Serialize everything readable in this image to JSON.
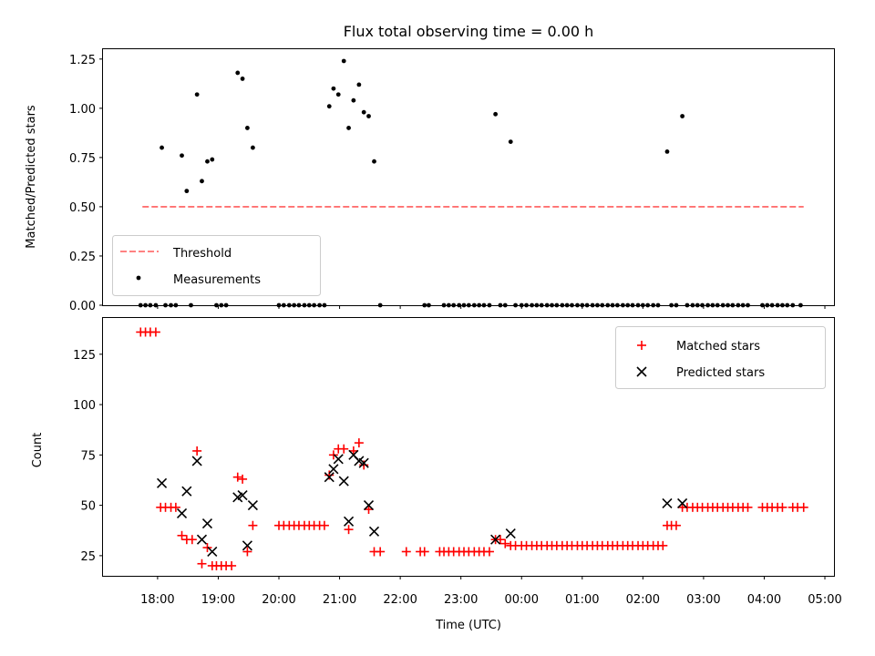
{
  "chart_data": [
    {
      "type": "scatter",
      "title": "Flux total observing time = 0.00 h",
      "ylabel": "Matched/Predicted stars",
      "ylim": [
        0,
        1.3
      ],
      "yticks": [
        "0.00",
        "0.25",
        "0.50",
        "0.75",
        "1.00",
        "1.25"
      ],
      "legend": {
        "placement": "lower-left",
        "entries": [
          "Threshold",
          "Measurements"
        ]
      },
      "threshold": {
        "name": "Threshold",
        "value": 0.5,
        "x": [
          17.75,
          28.65
        ],
        "color": "#ff7070"
      },
      "series": [
        {
          "name": "Measurements",
          "color": "#000000",
          "points": [
            [
              18.07,
              0.8
            ],
            [
              18.4,
              0.76
            ],
            [
              18.48,
              0.58
            ],
            [
              18.65,
              1.07
            ],
            [
              18.73,
              0.63
            ],
            [
              18.82,
              0.73
            ],
            [
              18.9,
              0.74
            ],
            [
              19.32,
              1.18
            ],
            [
              19.4,
              1.15
            ],
            [
              19.48,
              0.9
            ],
            [
              19.57,
              0.8
            ],
            [
              20.83,
              1.01
            ],
            [
              20.9,
              1.1
            ],
            [
              20.98,
              1.07
            ],
            [
              21.07,
              1.24
            ],
            [
              21.15,
              0.9
            ],
            [
              21.23,
              1.04
            ],
            [
              21.32,
              1.12
            ],
            [
              21.4,
              0.98
            ],
            [
              21.48,
              0.96
            ],
            [
              21.57,
              0.73
            ],
            [
              23.57,
              0.97
            ],
            [
              23.82,
              0.83
            ],
            [
              26.4,
              0.78
            ],
            [
              26.65,
              0.96
            ]
          ],
          "zeros": [
            17.72,
            17.8,
            17.88,
            17.97,
            18.13,
            18.22,
            18.3,
            18.55,
            18.97,
            19.05,
            19.13,
            20.0,
            20.08,
            20.17,
            20.25,
            20.33,
            20.42,
            20.5,
            20.58,
            20.67,
            20.75,
            21.67,
            22.4,
            22.47,
            22.72,
            22.8,
            22.88,
            22.97,
            23.05,
            23.13,
            23.22,
            23.3,
            23.38,
            23.47,
            23.65,
            23.73,
            23.9,
            24.0,
            24.08,
            24.17,
            24.25,
            24.33,
            24.42,
            24.5,
            24.58,
            24.67,
            24.75,
            24.83,
            24.92,
            25.0,
            25.08,
            25.17,
            25.25,
            25.33,
            25.42,
            25.5,
            25.58,
            25.67,
            25.75,
            25.83,
            25.92,
            26.0,
            26.08,
            26.17,
            26.25,
            26.47,
            26.55,
            26.73,
            26.82,
            26.9,
            26.98,
            27.07,
            27.15,
            27.23,
            27.32,
            27.4,
            27.48,
            27.57,
            27.65,
            27.73,
            27.97,
            28.05,
            28.13,
            28.22,
            28.3,
            28.38,
            28.47,
            28.6
          ]
        }
      ]
    },
    {
      "type": "scatter",
      "xlabel": "Time (UTC)",
      "ylabel": "Count",
      "xlim": [
        17.1,
        29.15
      ],
      "ylim": [
        15,
        143
      ],
      "xticks": [
        {
          "value": 18,
          "label": "18:00"
        },
        {
          "value": 19,
          "label": "19:00"
        },
        {
          "value": 20,
          "label": "20:00"
        },
        {
          "value": 21,
          "label": "21:00"
        },
        {
          "value": 22,
          "label": "22:00"
        },
        {
          "value": 23,
          "label": "23:00"
        },
        {
          "value": 24,
          "label": "00:00"
        },
        {
          "value": 25,
          "label": "01:00"
        },
        {
          "value": 26,
          "label": "02:00"
        },
        {
          "value": 27,
          "label": "03:00"
        },
        {
          "value": 28,
          "label": "04:00"
        },
        {
          "value": 29,
          "label": "05:00"
        }
      ],
      "yticks": [
        "25",
        "50",
        "75",
        "100",
        "125"
      ],
      "legend": {
        "placement": "upper-right",
        "entries": [
          "Matched stars",
          "Predicted stars"
        ]
      },
      "series": [
        {
          "name": "Matched stars",
          "marker": "plus",
          "color": "#ff0000",
          "points": [
            [
              17.72,
              136
            ],
            [
              17.8,
              136
            ],
            [
              17.88,
              136
            ],
            [
              17.97,
              136
            ],
            [
              18.05,
              49
            ],
            [
              18.13,
              49
            ],
            [
              18.22,
              49
            ],
            [
              18.3,
              49
            ],
            [
              18.4,
              35
            ],
            [
              18.48,
              33
            ],
            [
              18.57,
              33
            ],
            [
              18.65,
              77
            ],
            [
              18.73,
              21
            ],
            [
              18.82,
              29
            ],
            [
              18.9,
              20
            ],
            [
              18.97,
              20
            ],
            [
              19.05,
              20
            ],
            [
              19.13,
              20
            ],
            [
              19.22,
              20
            ],
            [
              19.32,
              64
            ],
            [
              19.4,
              63
            ],
            [
              19.48,
              27
            ],
            [
              19.57,
              40
            ],
            [
              20.0,
              40
            ],
            [
              20.08,
              40
            ],
            [
              20.17,
              40
            ],
            [
              20.25,
              40
            ],
            [
              20.33,
              40
            ],
            [
              20.42,
              40
            ],
            [
              20.5,
              40
            ],
            [
              20.58,
              40
            ],
            [
              20.67,
              40
            ],
            [
              20.75,
              40
            ],
            [
              20.83,
              65
            ],
            [
              20.9,
              75
            ],
            [
              20.98,
              78
            ],
            [
              21.07,
              78
            ],
            [
              21.15,
              38
            ],
            [
              21.23,
              77
            ],
            [
              21.32,
              81
            ],
            [
              21.4,
              70
            ],
            [
              21.48,
              48
            ],
            [
              21.57,
              27
            ],
            [
              21.67,
              27
            ],
            [
              22.1,
              27
            ],
            [
              22.33,
              27
            ],
            [
              22.4,
              27
            ],
            [
              22.65,
              27
            ],
            [
              22.72,
              27
            ],
            [
              22.8,
              27
            ],
            [
              22.88,
              27
            ],
            [
              22.97,
              27
            ],
            [
              23.05,
              27
            ],
            [
              23.13,
              27
            ],
            [
              23.22,
              27
            ],
            [
              23.3,
              27
            ],
            [
              23.38,
              27
            ],
            [
              23.47,
              27
            ],
            [
              23.57,
              33
            ],
            [
              23.65,
              33
            ],
            [
              23.73,
              31
            ],
            [
              23.82,
              30
            ],
            [
              23.9,
              30
            ],
            [
              24.0,
              30
            ],
            [
              24.08,
              30
            ],
            [
              24.17,
              30
            ],
            [
              24.25,
              30
            ],
            [
              24.33,
              30
            ],
            [
              24.42,
              30
            ],
            [
              24.5,
              30
            ],
            [
              24.58,
              30
            ],
            [
              24.67,
              30
            ],
            [
              24.75,
              30
            ],
            [
              24.83,
              30
            ],
            [
              24.92,
              30
            ],
            [
              25.0,
              30
            ],
            [
              25.08,
              30
            ],
            [
              25.17,
              30
            ],
            [
              25.25,
              30
            ],
            [
              25.33,
              30
            ],
            [
              25.42,
              30
            ],
            [
              25.5,
              30
            ],
            [
              25.58,
              30
            ],
            [
              25.67,
              30
            ],
            [
              25.75,
              30
            ],
            [
              25.83,
              30
            ],
            [
              25.92,
              30
            ],
            [
              26.0,
              30
            ],
            [
              26.08,
              30
            ],
            [
              26.17,
              30
            ],
            [
              26.25,
              30
            ],
            [
              26.33,
              30
            ],
            [
              26.4,
              40
            ],
            [
              26.47,
              40
            ],
            [
              26.55,
              40
            ],
            [
              26.65,
              49
            ],
            [
              26.73,
              49
            ],
            [
              26.82,
              49
            ],
            [
              26.9,
              49
            ],
            [
              26.98,
              49
            ],
            [
              27.07,
              49
            ],
            [
              27.15,
              49
            ],
            [
              27.23,
              49
            ],
            [
              27.32,
              49
            ],
            [
              27.4,
              49
            ],
            [
              27.48,
              49
            ],
            [
              27.57,
              49
            ],
            [
              27.65,
              49
            ],
            [
              27.73,
              49
            ],
            [
              27.97,
              49
            ],
            [
              28.05,
              49
            ],
            [
              28.13,
              49
            ],
            [
              28.22,
              49
            ],
            [
              28.3,
              49
            ],
            [
              28.47,
              49
            ],
            [
              28.55,
              49
            ],
            [
              28.65,
              49
            ]
          ]
        },
        {
          "name": "Predicted stars",
          "marker": "x",
          "color": "#000000",
          "points": [
            [
              18.07,
              61
            ],
            [
              18.4,
              46
            ],
            [
              18.48,
              57
            ],
            [
              18.65,
              72
            ],
            [
              18.73,
              33
            ],
            [
              18.82,
              41
            ],
            [
              18.9,
              27
            ],
            [
              19.32,
              54
            ],
            [
              19.4,
              55
            ],
            [
              19.48,
              30
            ],
            [
              19.57,
              50
            ],
            [
              20.83,
              64
            ],
            [
              20.9,
              68
            ],
            [
              20.98,
              73
            ],
            [
              21.07,
              62
            ],
            [
              21.15,
              42
            ],
            [
              21.23,
              75
            ],
            [
              21.32,
              72
            ],
            [
              21.4,
              71
            ],
            [
              21.48,
              50
            ],
            [
              21.57,
              37
            ],
            [
              23.57,
              33
            ],
            [
              23.82,
              36
            ],
            [
              26.4,
              51
            ],
            [
              26.65,
              51
            ]
          ]
        }
      ]
    }
  ]
}
